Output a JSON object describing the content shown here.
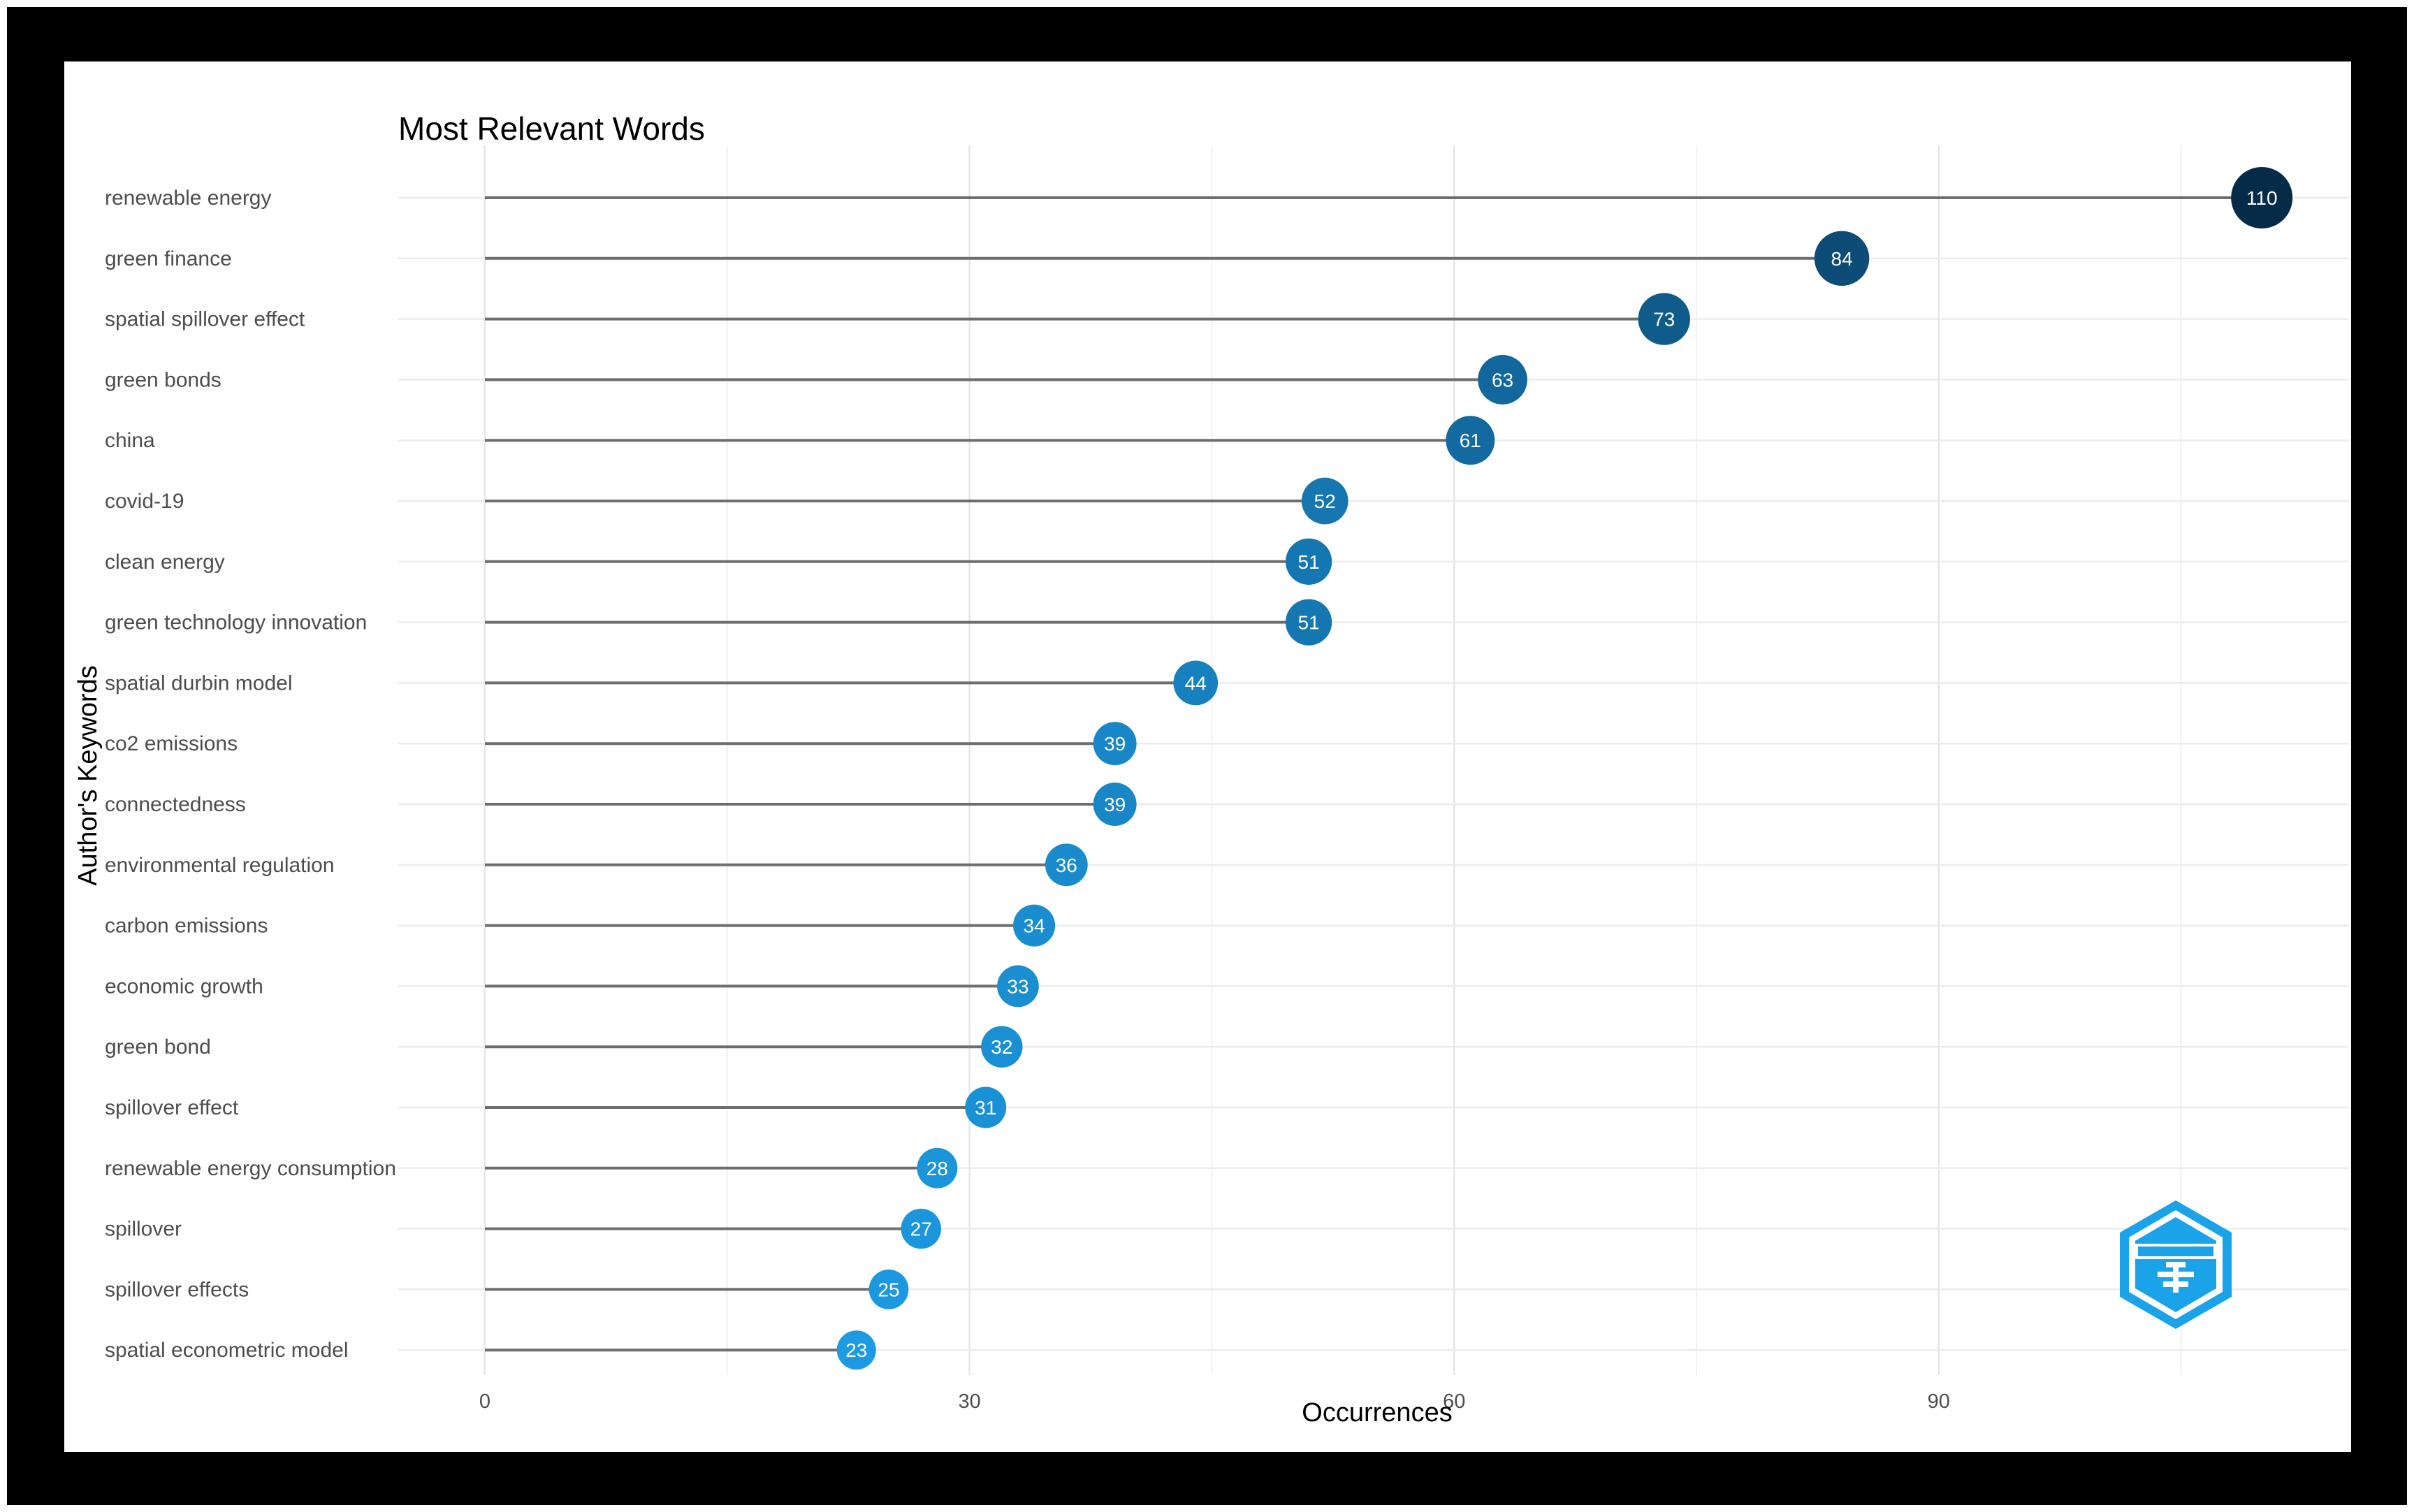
{
  "chart_data": {
    "type": "lollipop",
    "title": "Most Relevant Words",
    "xlabel": "Occurrences",
    "ylabel": "Author's Keywords",
    "xlim": [
      0,
      115
    ],
    "xticks": [
      0,
      30,
      60,
      90
    ],
    "grid": true,
    "legend": "none",
    "categories": [
      "renewable energy",
      "green finance",
      "spatial spillover effect",
      "green bonds",
      "china",
      "covid-19",
      "clean energy",
      "green technology innovation",
      "spatial durbin model",
      "co2 emissions",
      "connectedness",
      "environmental regulation",
      "carbon emissions",
      "economic growth",
      "green bond",
      "spillover effect",
      "renewable energy consumption",
      "spillover",
      "spillover effects",
      "spatial econometric model"
    ],
    "values": [
      110,
      84,
      73,
      63,
      61,
      52,
      51,
      51,
      44,
      39,
      39,
      36,
      34,
      33,
      32,
      31,
      28,
      27,
      25,
      23
    ],
    "color_scale": {
      "low": "#1c9be3",
      "high": "#062b49"
    },
    "stem_color": "#6e6e6e",
    "logo_icon": "bibliometrix-logo-icon"
  }
}
